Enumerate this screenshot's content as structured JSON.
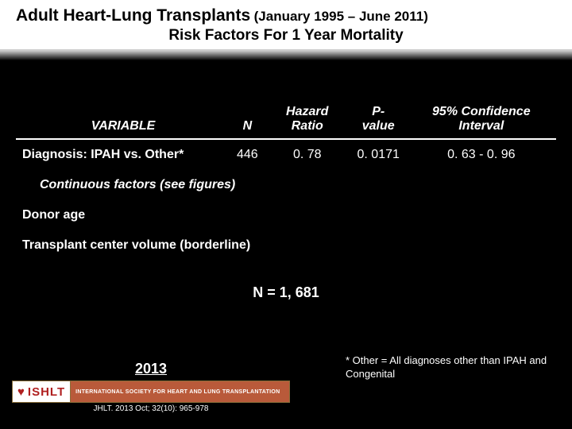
{
  "title": {
    "main": "Adult Heart-Lung Transplants",
    "date_range": "(January 1995 – June 2011)",
    "subtitle": "Risk Factors For 1 Year Mortality"
  },
  "table": {
    "headers": {
      "variable": "VARIABLE",
      "n": "N",
      "hazard_ratio": "Hazard Ratio",
      "p_value": "P-value",
      "ci": "95% Confidence Interval"
    },
    "rows": [
      {
        "variable": "Diagnosis: IPAH vs. Other*",
        "n": "446",
        "hazard_ratio": "0. 78",
        "p_value": "0. 0171",
        "ci": "0. 63 - 0. 96"
      }
    ],
    "section_header": "Continuous factors (see figures)",
    "continuous_rows": [
      {
        "variable": "Donor age"
      },
      {
        "variable": "Transplant center volume (borderline)"
      }
    ]
  },
  "n_total": "N = 1, 681",
  "footnote": "* Other = All diagnoses other than IPAH and Congenital",
  "logo": {
    "year": "2013",
    "short": "ISHLT",
    "long": "INTERNATIONAL SOCIETY FOR HEART AND LUNG TRANSPLANTATION",
    "citation": "JHLT. 2013 Oct; 32(10): 965-978"
  },
  "colors": {
    "bg": "#000000",
    "title_bg": "#ffffff",
    "text_light": "#ffffff",
    "text_dark": "#000000",
    "logo_bg": "#b95a3a",
    "logo_red": "#b02020"
  }
}
